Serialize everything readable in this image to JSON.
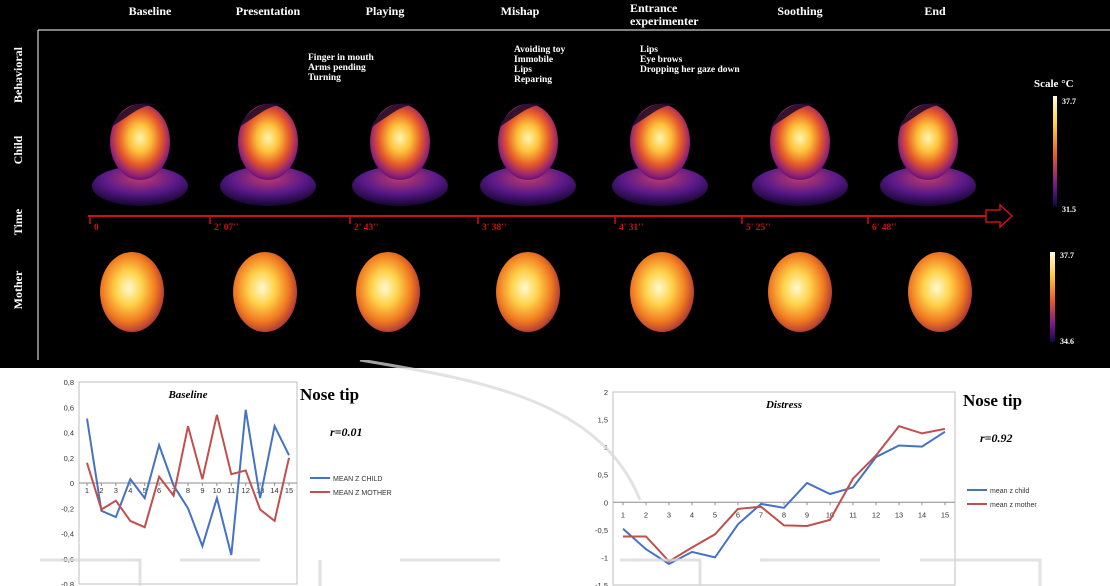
{
  "phases": [
    "Baseline",
    "Presentation",
    "Playing",
    "Mishap",
    "Entrance\nexperimenter",
    "Soothing",
    "End"
  ],
  "row_labels": [
    "Behavioral",
    "Child",
    "Time",
    "Mother"
  ],
  "behaviors": [
    {
      "phase": "Playing",
      "lines": [
        "Finger in mouth",
        "Arms  pending",
        "Turning"
      ]
    },
    {
      "phase": "Mishap",
      "lines": [
        "Avoiding toy",
        "Immobile",
        "Lips",
        "Reparing"
      ]
    },
    {
      "phase": "Entrance experimenter",
      "lines": [
        "Lips",
        "Eye brows",
        "Dropping her gaze down"
      ]
    }
  ],
  "timeline": [
    "0",
    "2' 07''",
    "2' 43''",
    "3' 38''",
    "4' 31''",
    "5' 25''",
    "6' 48''"
  ],
  "scale": {
    "title": "Scale °C",
    "child_max": "37.7",
    "child_min": "31.5",
    "mother_max": "37.7",
    "mother_min": "34.6"
  },
  "colors": {
    "timeline": "#cc1111",
    "child_series": "#4472c4",
    "mother_series": "#c0504d"
  },
  "chart_data": [
    {
      "type": "line",
      "title": "Baseline",
      "side_title": "Nose tip",
      "annotation": "r=0.01",
      "x": [
        1,
        2,
        3,
        4,
        5,
        6,
        7,
        8,
        9,
        10,
        11,
        12,
        13,
        14,
        15
      ],
      "ylim": [
        -0.8,
        0.8
      ],
      "yticks": [
        "0,8",
        "0,6",
        "0,4",
        "0,2",
        "0",
        "-0,2",
        "-0,4",
        "-0,6",
        "-0,8"
      ],
      "ytick_values": [
        0.8,
        0.6,
        0.4,
        0.2,
        0,
        -0.2,
        -0.4,
        -0.6,
        -0.8
      ],
      "legend_position": "right",
      "series": [
        {
          "name": "MEAN Z CHILD",
          "values": [
            0.51,
            -0.22,
            -0.27,
            0.03,
            -0.12,
            0.3,
            -0.02,
            -0.2,
            -0.5,
            -0.12,
            -0.57,
            0.58,
            -0.12,
            0.45,
            0.22
          ]
        },
        {
          "name": "MEAN Z MOTHER",
          "values": [
            0.16,
            -0.21,
            -0.14,
            -0.3,
            -0.35,
            0.05,
            -0.1,
            0.45,
            0.03,
            0.54,
            0.07,
            0.1,
            -0.21,
            -0.3,
            0.2
          ]
        }
      ]
    },
    {
      "type": "line",
      "title": "Distress",
      "side_title": "Nose tip",
      "annotation": "r=0.92",
      "x": [
        1,
        2,
        3,
        4,
        5,
        6,
        7,
        8,
        9,
        10,
        11,
        12,
        13,
        14,
        15
      ],
      "ylim": [
        -1.5,
        2
      ],
      "yticks": [
        "2",
        "1,5",
        "1",
        "0,5",
        "0",
        "-0,5",
        "-1",
        "-1,5"
      ],
      "ytick_values": [
        2,
        1.5,
        1,
        0.5,
        0,
        -0.5,
        -1,
        -1.5
      ],
      "legend_position": "right",
      "series": [
        {
          "name": "mean z child",
          "values": [
            -0.48,
            -0.85,
            -1.12,
            -0.9,
            -1.0,
            -0.4,
            -0.03,
            -0.1,
            0.35,
            0.15,
            0.27,
            0.82,
            1.03,
            1.01,
            1.28
          ]
        },
        {
          "name": "mean z mother",
          "values": [
            -0.62,
            -0.62,
            -1.07,
            -0.82,
            -0.58,
            -0.12,
            -0.08,
            -0.42,
            -0.43,
            -0.32,
            0.43,
            0.85,
            1.38,
            1.25,
            1.33
          ]
        }
      ]
    }
  ]
}
